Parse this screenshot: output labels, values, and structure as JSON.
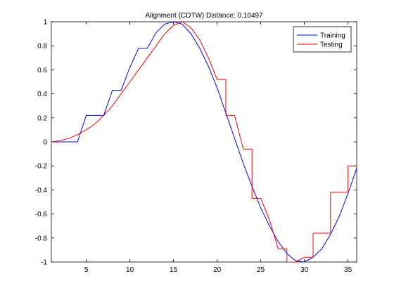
{
  "chart_data": {
    "type": "line",
    "title": "Alignment (CDTW) Distance:  0.10497",
    "xlabel": "",
    "ylabel": "",
    "xlim": [
      1,
      36
    ],
    "ylim": [
      -1,
      1
    ],
    "xticks": [
      5,
      10,
      15,
      20,
      25,
      30,
      35
    ],
    "yticks": [
      -1,
      -0.8,
      -0.6,
      -0.4,
      -0.2,
      0,
      0.2,
      0.4,
      0.6,
      0.8,
      1
    ],
    "ytick_labels": [
      "-1",
      "-0.8",
      "-0.6",
      "-0.4",
      "-0.2",
      "0",
      "0.2",
      "0.4",
      "0.6",
      "0.8",
      "1"
    ],
    "grid": false,
    "legend_position": "top-right",
    "series": [
      {
        "name": "Training",
        "color": "#0000ff",
        "x": [
          1,
          4,
          5,
          7,
          8,
          9,
          10,
          11,
          12,
          13,
          14,
          15,
          16,
          17,
          18,
          19,
          20,
          21,
          22,
          23,
          24,
          25,
          26,
          27,
          28,
          29,
          30,
          31,
          32,
          33,
          34,
          35,
          36
        ],
        "y": [
          0,
          0,
          0.22,
          0.22,
          0.43,
          0.43,
          0.62,
          0.78,
          0.78,
          0.91,
          0.98,
          1.0,
          0.98,
          0.9,
          0.78,
          0.63,
          0.45,
          0.24,
          0.03,
          -0.18,
          -0.37,
          -0.55,
          -0.7,
          -0.83,
          -0.93,
          -0.99,
          -1.0,
          -0.96,
          -0.89,
          -0.77,
          -0.62,
          -0.43,
          -0.22
        ]
      },
      {
        "name": "Testing",
        "color": "#ff0000",
        "x": [
          1,
          2,
          3,
          4,
          5,
          6,
          7,
          8,
          9,
          10,
          11,
          12,
          13,
          14,
          15,
          16,
          17,
          18,
          19,
          20,
          21,
          22,
          23,
          24,
          25,
          26,
          27,
          28,
          29,
          30,
          31,
          32,
          33,
          34,
          35,
          36
        ],
        "y": [
          0,
          0.01,
          0.03,
          0.06,
          0.1,
          0.15,
          0.22,
          0.3,
          0.4,
          0.5,
          0.6,
          0.7,
          0.8,
          0.9,
          0.97,
          1.0,
          0.95,
          0.85,
          0.7,
          0.52,
          0.32,
          0.12,
          -0.08,
          -0.28,
          -0.47,
          -0.65,
          -0.8,
          -0.9,
          -0.96,
          -1.0,
          -0.98,
          -0.91,
          -0.8,
          -0.65,
          -0.43,
          -0.2
        ],
        "step_x": [
          1,
          2,
          3,
          4,
          5,
          6,
          7,
          8,
          9,
          10,
          11,
          12,
          13,
          14,
          15,
          16,
          17,
          18,
          19,
          20,
          21,
          22,
          23,
          24,
          25,
          26,
          27,
          28,
          29,
          30,
          31,
          32,
          33,
          34,
          35,
          36
        ],
        "step_y": [
          0,
          0.01,
          0.03,
          0.06,
          0.1,
          0.15,
          0.22,
          0.3,
          0.4,
          0.5,
          0.6,
          0.7,
          0.8,
          0.9,
          0.97,
          1.0,
          0.95,
          0.85,
          0.7,
          0.52,
          0.52,
          0.22,
          -0.06,
          -0.06,
          -0.47,
          -0.65,
          -0.89,
          -0.89,
          -1.0,
          -0.96,
          -0.96,
          -0.76,
          -0.76,
          -0.42,
          -0.42,
          -0.2
        ]
      }
    ]
  }
}
